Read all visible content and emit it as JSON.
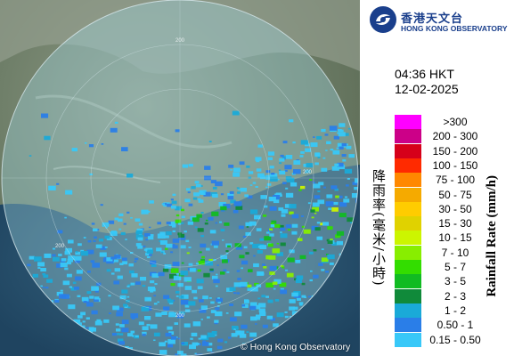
{
  "app": {
    "org_name_cn": "香港天文台",
    "org_name_en": "HONG KONG OBSERVATORY"
  },
  "radar": {
    "time": "04:36 HKT",
    "date": "12-02-2025",
    "copyright": "© Hong Kong Observatory",
    "range_ring_labels": [
      "200",
      "200",
      "200",
      "200"
    ]
  },
  "legend": {
    "title_cn": "降雨率(毫米/小時)",
    "title_en": "Rainfall Rate (mm/h)",
    "entries": [
      {
        "label": ">300",
        "color": "#ff00ff"
      },
      {
        "label": "200 - 300",
        "color": "#cc0088"
      },
      {
        "label": "150 - 200",
        "color": "#d6001a"
      },
      {
        "label": "100 - 150",
        "color": "#ff2a00"
      },
      {
        "label": "75 - 100",
        "color": "#ff8800"
      },
      {
        "label": "50 - 75",
        "color": "#f5aa00"
      },
      {
        "label": "30 - 50",
        "color": "#ffcc00"
      },
      {
        "label": "15 - 30",
        "color": "#e0d200"
      },
      {
        "label": "10 - 15",
        "color": "#ccf500"
      },
      {
        "label": "7 - 10",
        "color": "#88ee00"
      },
      {
        "label": "5 - 7",
        "color": "#33dd00"
      },
      {
        "label": "3 - 5",
        "color": "#11bb22"
      },
      {
        "label": "2 - 3",
        "color": "#108a3a"
      },
      {
        "label": "1 - 2",
        "color": "#1aaad8"
      },
      {
        "label": "0.50 - 1",
        "color": "#2a7ee8"
      },
      {
        "label": "0.15 - 0.50",
        "color": "#38c8f8"
      }
    ]
  }
}
